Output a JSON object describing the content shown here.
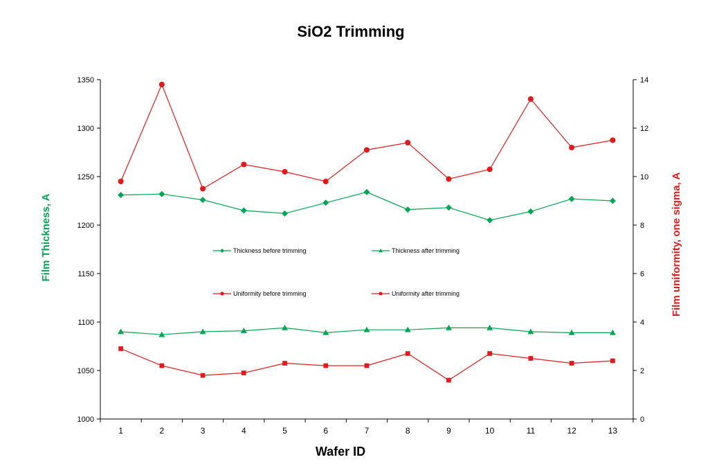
{
  "chart_data": {
    "type": "line",
    "title": "SiO2 Trimming",
    "xlabel": "Wafer ID",
    "ylabel": "Film Thickness, A",
    "y2label": "Film uniformity, one sigma, A",
    "categories": [
      1,
      2,
      3,
      4,
      5,
      6,
      7,
      8,
      9,
      10,
      11,
      12,
      13
    ],
    "ylim": [
      1000,
      1350
    ],
    "y2lim": [
      0,
      14
    ],
    "y_ticks": [
      1000,
      1050,
      1100,
      1150,
      1200,
      1250,
      1300,
      1350
    ],
    "y2_ticks": [
      0,
      2,
      4,
      6,
      8,
      10,
      12,
      14
    ],
    "grid": false,
    "legend_placement": "center",
    "series": [
      {
        "name": "Thickness before trimming",
        "axis": "left",
        "color": "#00a651",
        "marker": "diamond",
        "values": [
          1231,
          1232,
          1226,
          1215,
          1212,
          1223,
          1234,
          1216,
          1218,
          1205,
          1214,
          1227,
          1225
        ]
      },
      {
        "name": "Thickness after trimming",
        "axis": "left",
        "color": "#00a651",
        "marker": "triangle",
        "values": [
          1090,
          1087,
          1090,
          1091,
          1094,
          1089,
          1092,
          1092,
          1094,
          1094,
          1090,
          1089,
          1089
        ]
      },
      {
        "name": "Uniformity before trimming",
        "axis": "right",
        "color": "#e31a1c",
        "marker": "circle",
        "values": [
          9.8,
          13.8,
          9.5,
          10.5,
          10.2,
          9.8,
          11.1,
          11.4,
          9.9,
          10.3,
          13.2,
          11.2,
          11.5
        ]
      },
      {
        "name": "Uniformity after trimming",
        "axis": "right",
        "color": "#e31a1c",
        "marker": "square",
        "values": [
          2.9,
          2.2,
          1.8,
          1.9,
          2.3,
          2.2,
          2.2,
          2.7,
          1.6,
          2.7,
          2.5,
          2.3,
          2.4
        ]
      }
    ]
  },
  "colors": {
    "thickness": "#00a651",
    "uniformity": "#e31a1c"
  }
}
